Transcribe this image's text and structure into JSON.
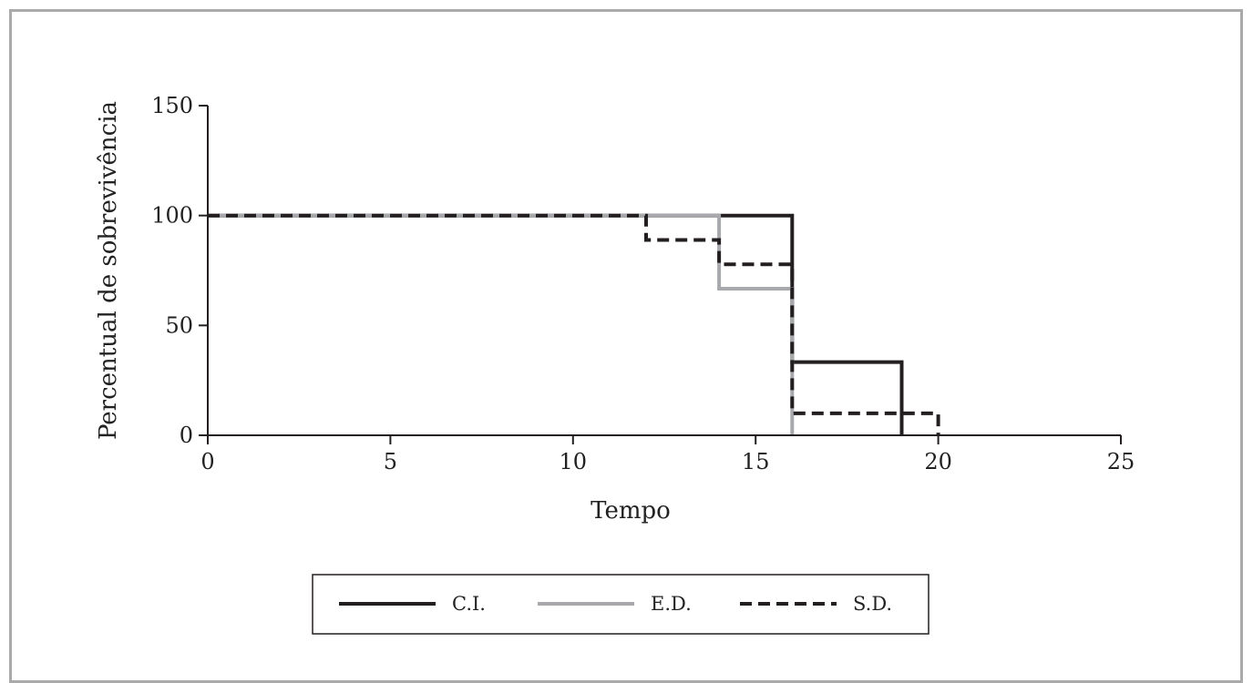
{
  "chart_data": {
    "type": "line",
    "step": true,
    "xlabel": "Tempo",
    "ylabel": "Percentual de sobrevivência",
    "xlim": [
      0,
      25
    ],
    "ylim": [
      0,
      150
    ],
    "x_ticks": [
      0,
      5,
      10,
      15,
      20,
      25
    ],
    "y_ticks": [
      0,
      50,
      100,
      150
    ],
    "x_tick_labels": [
      "0",
      "5",
      "10",
      "15",
      "20",
      "25"
    ],
    "y_tick_labels": [
      "0",
      "50",
      "100",
      "150"
    ],
    "legend_position": "bottom",
    "grid": false,
    "series": [
      {
        "name": "C.I.",
        "color": "#231f20",
        "dash": "solid",
        "x": [
          0,
          16,
          16,
          19,
          19
        ],
        "y": [
          100,
          100,
          33.3,
          33.3,
          0
        ]
      },
      {
        "name": "E.D.",
        "color": "#a7a9ac",
        "dash": "solid",
        "x": [
          0,
          14,
          14,
          16,
          16
        ],
        "y": [
          100,
          100,
          66.7,
          66.7,
          0
        ]
      },
      {
        "name": "S.D.",
        "color": "#231f20",
        "dash": "dashed",
        "x": [
          0,
          12,
          12,
          14,
          14,
          16,
          16,
          20,
          20
        ],
        "y": [
          100,
          100,
          88.9,
          88.9,
          77.8,
          77.8,
          10,
          10,
          0
        ]
      }
    ]
  }
}
